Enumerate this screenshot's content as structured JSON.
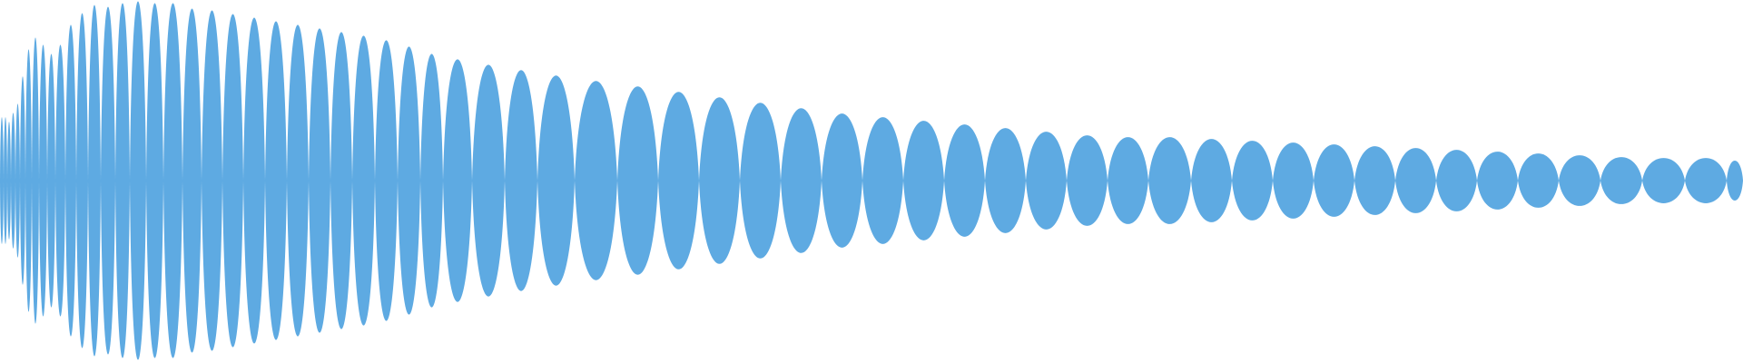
{
  "waveform": {
    "color": "#5eaae2",
    "background": "#ffffff",
    "icon": "audio-waveform"
  }
}
